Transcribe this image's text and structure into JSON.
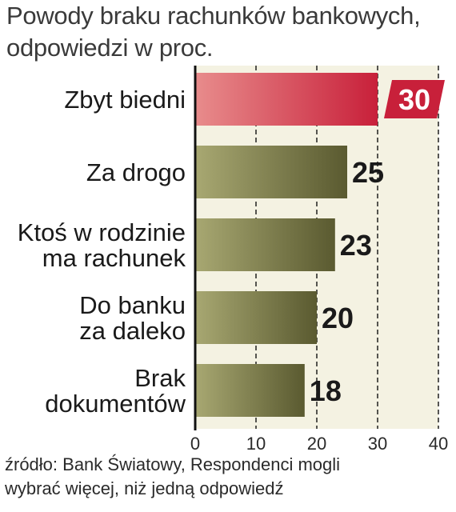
{
  "title_lines": [
    "Powody braku rachunków bankowych,",
    "odpowiedzi w proc."
  ],
  "source_lines": [
    "źródło: Bank Światowy, Respondenci mogli",
    "wybrać więcej, niż jedną odpowiedź"
  ],
  "colors": {
    "highlight": "#c8203a",
    "highlight_light": "#e88c8c",
    "bar_dark": "#5a5a30",
    "bar_light": "#a8a872",
    "plot_bg": "#f4f2e2",
    "grid": "#111111"
  },
  "chart_data": {
    "type": "bar",
    "orientation": "horizontal",
    "categories": [
      [
        "Zbyt biedni"
      ],
      [
        "Za drogo"
      ],
      [
        "Ktoś w rodzinie",
        "ma rachunek"
      ],
      [
        "Do banku",
        "za daleko"
      ],
      [
        "Brak",
        "dokumentów"
      ]
    ],
    "values": [
      30,
      25,
      23,
      20,
      18
    ],
    "highlight_index": 0,
    "xlim": [
      0,
      40
    ],
    "xticks": [
      0,
      10,
      20,
      30,
      40
    ],
    "grid": "vertical dashed",
    "title": "Powody braku rachunków bankowych, odpowiedzi w proc."
  }
}
